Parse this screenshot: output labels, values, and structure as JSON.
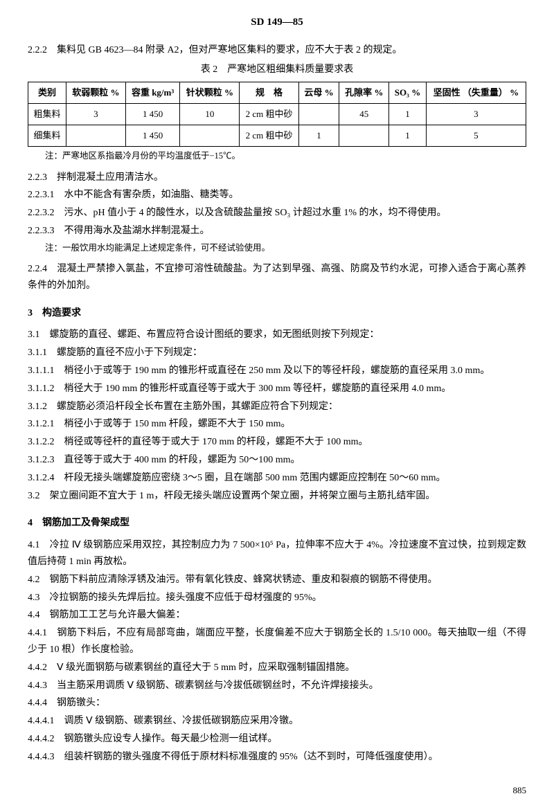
{
  "header": {
    "code": "SD 149—85"
  },
  "p_222": "2.2.2　集料见 GB 4623—84 附录 A2，但对严寒地区集料的要求，应不大于表 2 的规定。",
  "table2": {
    "caption": "表 2　严寒地区粗细集料质量要求表",
    "headers": [
      "类别",
      "软弱颗粒\n%",
      "容重\nkg/m³",
      "针状颗粒\n%",
      "规　格",
      "云母\n%",
      "孔隙率\n%",
      "SO₃\n%",
      "坚固性\n（失重量）\n%"
    ],
    "rows": [
      [
        "粗集料",
        "3",
        "1 450",
        "10",
        "2 cm 粗中砂",
        "",
        "45",
        "1",
        "3"
      ],
      [
        "细集料",
        "",
        "1 450",
        "",
        "2 cm 粗中砂",
        "1",
        "",
        "1",
        "5"
      ]
    ]
  },
  "note_t2": "注：严寒地区系指最冷月份的平均温度低于−15℃。",
  "p_223": "2.2.3　拌制混凝土应用清洁水。",
  "p_2231": "2.2.3.1　水中不能含有害杂质，如油脂、糖类等。",
  "p_2232": "2.2.3.2　污水、pH 值小于 4 的酸性水，以及含硫酸盐量按 SO₃ 计超过水重 1% 的水，均不得使用。",
  "p_2233": "2.2.3.3　不得用海水及盐湖水拌制混凝土。",
  "note_223": "注：一般饮用水均能满足上述规定条件，可不经试验使用。",
  "p_224": "2.2.4　混凝土严禁掺入氯盐，不宜掺可溶性硫酸盐。为了达到早强、高强、防腐及节约水泥，可掺入适合于离心蒸养条件的外加剂。",
  "sec3": "3　构造要求",
  "p_31": "3.1　螺旋筋的直径、螺距、布置应符合设计图纸的要求，如无图纸则按下列规定：",
  "p_311": "3.1.1　螺旋筋的直径不应小于下列规定：",
  "p_3111": "3.1.1.1　梢径小于或等于 190 mm 的锥形杆或直径在 250 mm 及以下的等径杆段，螺旋筋的直径采用 3.0 mm。",
  "p_3112": "3.1.1.2　梢径大于 190 mm 的锥形杆或直径等于或大于 300 mm 等径杆，螺旋筋的直径采用 4.0 mm。",
  "p_312": "3.1.2　螺旋筋必须沿杆段全长布置在主筋外围，其螺距应符合下列规定：",
  "p_3121": "3.1.2.1　梢径小于或等于 150 mm 杆段，螺距不大于 150 mm。",
  "p_3122": "3.1.2.2　梢径或等径杆的直径等于或大于 170 mm 的杆段，螺距不大于 100 mm。",
  "p_3123": "3.1.2.3　直径等于或大于 400 mm 的杆段，螺距为 50～100 mm。",
  "p_3124": "3.1.2.4　杆段无接头端螺旋筋应密绕 3～5 圈，且在端部 500 mm 范围内螺距应控制在 50～60 mm。",
  "p_32": "3.2　架立圈间距不宜大于 1 m，杆段无接头端应设置两个架立圈，并将架立圈与主筋扎结牢固。",
  "sec4": "4　钢筋加工及骨架成型",
  "p_41": "4.1　冷拉 Ⅳ 级钢筋应采用双控，其控制应力为 7 500×10⁵ Pa，拉伸率不应大于 4%。冷拉速度不宜过快，拉到规定数值后持荷 1 min 再放松。",
  "p_42": "4.2　钢筋下料前应清除浮锈及油污。带有氧化铁皮、蜂窝状锈迹、重皮和裂痕的钢筋不得使用。",
  "p_43": "4.3　冷拉钢筋的接头先焊后拉。接头强度不应低于母材强度的 95%。",
  "p_44": "4.4　钢筋加工工艺与允许最大偏差：",
  "p_441": "4.4.1　钢筋下料后，不应有局部弯曲，端面应平整，长度偏差不应大于钢筋全长的 1.5/10 000。每天抽取一组（不得少于 10 根）作长度检验。",
  "p_442": "4.4.2　Ⅴ 级光面钢筋与碳素钢丝的直径大于 5 mm 时，应采取强制锚固措施。",
  "p_443": "4.4.3　当主筋采用调质 Ⅴ 级钢筋、碳素钢丝与冷拔低碳钢丝时，不允许焊接接头。",
  "p_444": "4.4.4　钢筋镦头：",
  "p_4441": "4.4.4.1　调质 Ⅴ 级钢筋、碳素钢丝、冷拔低碳钢筋应采用冷镦。",
  "p_4442": "4.4.4.2　钢筋镦头应设专人操作。每天最少检测一组试样。",
  "p_4443": "4.4.4.3　组装杆钢筋的镦头强度不得低于原材料标准强度的 95%（达不到时，可降低强度使用）。",
  "page_num": "885"
}
